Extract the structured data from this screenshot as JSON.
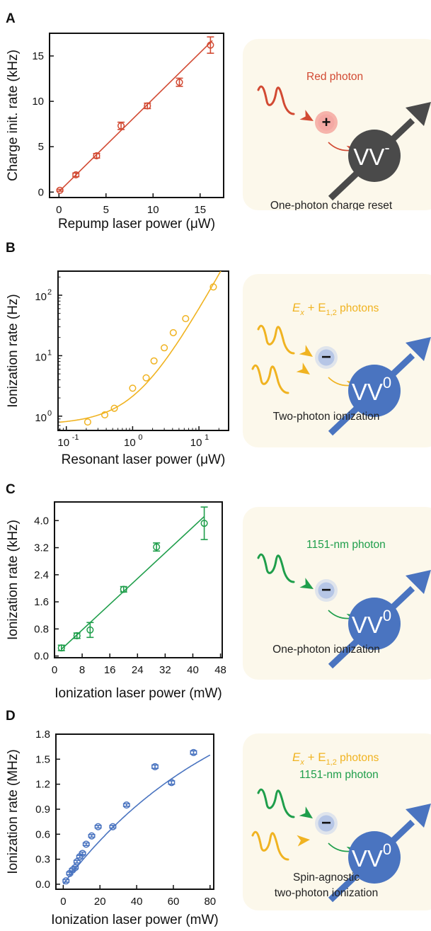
{
  "panels": [
    {
      "letter": "A",
      "chart_data": {
        "type": "scatter",
        "xlabel": "Repump laser power (μW)",
        "ylabel": "Charge init. rate (kHz)",
        "xscale": "linear",
        "yscale": "linear",
        "xlim": [
          -1,
          17.5
        ],
        "ylim": [
          -0.6,
          17.5
        ],
        "xticks": [
          0,
          5,
          10,
          15
        ],
        "yticks": [
          0,
          5,
          10,
          15
        ],
        "color": "#d24a33",
        "points": [
          {
            "x": 0.1,
            "y": 0.2,
            "err": 0.1
          },
          {
            "x": 1.8,
            "y": 1.9,
            "err": 0.2
          },
          {
            "x": 4.0,
            "y": 4.0,
            "err": 0.25
          },
          {
            "x": 6.6,
            "y": 7.3,
            "err": 0.4
          },
          {
            "x": 9.4,
            "y": 9.5,
            "err": 0.3
          },
          {
            "x": 12.8,
            "y": 12.1,
            "err": 0.45
          },
          {
            "x": 16.1,
            "y": 16.2,
            "err": 0.9
          }
        ],
        "fit": [
          [
            0,
            0.05
          ],
          [
            16.3,
            16.7
          ]
        ]
      },
      "diagram": {
        "photon_label": "Red photon",
        "center_symbol": "+",
        "state_label": "VV",
        "state_sup": "-",
        "caption_lines": [
          "One-photon charge reset"
        ]
      }
    },
    {
      "letter": "B",
      "chart_data": {
        "type": "scatter",
        "xlabel": "Resonant laser power (μW)",
        "ylabel": "Ionization rate (Hz)",
        "xscale": "log",
        "yscale": "log",
        "xlim": [
          0.075,
          28
        ],
        "ylim": [
          0.58,
          250
        ],
        "xticks": [
          0.1,
          1,
          10
        ],
        "xtick_labels": [
          "10",
          "10",
          "10"
        ],
        "xtick_exps": [
          "-1",
          "0",
          "1"
        ],
        "yticks": [
          1,
          10,
          100
        ],
        "ytick_labels": [
          "10",
          "10",
          "10"
        ],
        "ytick_exps": [
          "0",
          "1",
          "2"
        ],
        "color": "#f0b321",
        "points": [
          {
            "x": 0.21,
            "y": 0.8
          },
          {
            "x": 0.38,
            "y": 1.05
          },
          {
            "x": 0.53,
            "y": 1.35
          },
          {
            "x": 1.0,
            "y": 2.9
          },
          {
            "x": 1.6,
            "y": 4.3
          },
          {
            "x": 2.1,
            "y": 8.2
          },
          {
            "x": 3.0,
            "y": 13.5
          },
          {
            "x": 4.1,
            "y": 24
          },
          {
            "x": 6.3,
            "y": 41
          },
          {
            "x": 16.5,
            "y": 137
          }
        ],
        "fit_model": {
          "a": 0.72,
          "b": 2.6,
          "c": 0.13
        }
      },
      "diagram": {
        "photon_label": "E",
        "photon_sub": "x",
        "photon_label2": " + E",
        "photon_sub2": "1,2",
        "photon_label3": " photons",
        "center_symbol": "−",
        "state_label": "VV",
        "state_sup": "0",
        "caption_lines": [
          "Two-photon ionization"
        ]
      }
    },
    {
      "letter": "C",
      "chart_data": {
        "type": "scatter",
        "xlabel": "Ionization laser power (mW)",
        "ylabel": "Ionization rate (kHz)",
        "xscale": "linear",
        "yscale": "linear",
        "xlim": [
          0,
          48.5
        ],
        "ylim": [
          -0.05,
          4.55
        ],
        "xticks": [
          0,
          8,
          16,
          24,
          32,
          40,
          48
        ],
        "yticks": [
          0.0,
          0.8,
          1.6,
          2.4,
          3.2,
          4.0
        ],
        "ytick_labels": [
          "0.0",
          "0.8",
          "1.6",
          "2.4",
          "3.2",
          "4.0"
        ],
        "color": "#1f9e4b",
        "points": [
          {
            "x": 2.0,
            "y": 0.24,
            "err": 0.08
          },
          {
            "x": 6.5,
            "y": 0.6,
            "err": 0.08
          },
          {
            "x": 10.3,
            "y": 0.77,
            "err": 0.22
          },
          {
            "x": 20.0,
            "y": 1.97,
            "err": 0.08
          },
          {
            "x": 29.5,
            "y": 3.22,
            "err": 0.12
          },
          {
            "x": 43.3,
            "y": 3.92,
            "err": 0.48
          }
        ],
        "fit": [
          [
            2.0,
            0.2
          ],
          [
            43.3,
            4.12
          ]
        ]
      },
      "diagram": {
        "photon_label": "1151-nm photon",
        "center_symbol": "−",
        "state_label": "VV",
        "state_sup": "0",
        "caption_lines": [
          "One-photon ionization"
        ]
      }
    },
    {
      "letter": "D",
      "chart_data": {
        "type": "scatter",
        "xlabel": "Ionization laser power (mW)",
        "ylabel": "Ionization rate (MHz)",
        "xscale": "linear",
        "yscale": "linear",
        "xlim": [
          -4,
          82
        ],
        "ylim": [
          -0.06,
          1.8
        ],
        "xticks": [
          0,
          20,
          40,
          60,
          80
        ],
        "yticks": [
          0.0,
          0.3,
          0.6,
          0.9,
          1.2,
          1.5,
          1.8
        ],
        "ytick_labels": [
          "0.0",
          "0.3",
          "0.6",
          "0.9",
          "1.2",
          "1.5",
          "1.8"
        ],
        "color": "#4a74c0",
        "points": [
          {
            "x": 1.5,
            "y": 0.04,
            "err": 0.015
          },
          {
            "x": 3.5,
            "y": 0.13,
            "err": 0.015
          },
          {
            "x": 5.0,
            "y": 0.17,
            "err": 0.015
          },
          {
            "x": 6.5,
            "y": 0.2,
            "err": 0.015
          },
          {
            "x": 7.5,
            "y": 0.27,
            "err": 0.015
          },
          {
            "x": 9.0,
            "y": 0.33,
            "err": 0.015
          },
          {
            "x": 10.5,
            "y": 0.37,
            "err": 0.015
          },
          {
            "x": 12.5,
            "y": 0.48,
            "err": 0.015
          },
          {
            "x": 15.5,
            "y": 0.58,
            "err": 0.015
          },
          {
            "x": 19.0,
            "y": 0.69,
            "err": 0.015
          },
          {
            "x": 27.0,
            "y": 0.69,
            "err": 0.015
          },
          {
            "x": 34.5,
            "y": 0.95,
            "err": 0.015
          },
          {
            "x": 50.0,
            "y": 1.41,
            "err": 0.02
          },
          {
            "x": 59.0,
            "y": 1.22,
            "err": 0.02
          },
          {
            "x": 71.0,
            "y": 1.58,
            "err": 0.02
          }
        ],
        "fit_model": {
          "a": 2.65,
          "tau": 91
        }
      },
      "diagram": {
        "photon_label": "E",
        "photon_sub": "x",
        "photon_label2": " + E",
        "photon_sub2": "1,2",
        "photon_label3": " photons",
        "photon_label_second": "1151-nm photon",
        "center_symbol": "−",
        "state_label": "VV",
        "state_sup": "0",
        "caption_lines": [
          "Spin-agnostic",
          "two-photon ionization"
        ]
      }
    }
  ]
}
